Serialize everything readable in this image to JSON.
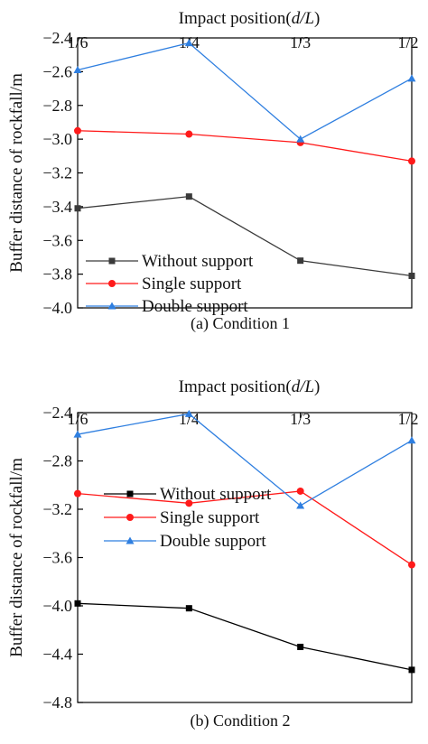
{
  "chart_data": [
    {
      "type": "line",
      "caption": "(a) Condition 1",
      "xlabel_prefix": "Impact position",
      "xlabel_var": "(d/L)",
      "ylabel": "Buffer distance of rockfall/m",
      "categories": [
        "1/6",
        "1/4",
        "1/3",
        "1/2"
      ],
      "yticks": [
        "-2.4",
        "-2.6",
        "-2.8",
        "-3.0",
        "-3.2",
        "-3.4",
        "-3.6",
        "-3.8",
        "-4.0"
      ],
      "ylim": [
        -4.0,
        -2.4
      ],
      "series": [
        {
          "name": "Without support",
          "color": "#3a3a3a",
          "marker": "square",
          "values": [
            -3.41,
            -3.34,
            -3.72,
            -3.81
          ]
        },
        {
          "name": "Single support",
          "color": "#ff1a1a",
          "marker": "circle",
          "values": [
            -2.95,
            -2.97,
            -3.02,
            -3.13
          ]
        },
        {
          "name": "Double support",
          "color": "#2f7fe0",
          "marker": "triangle",
          "values": [
            -2.59,
            -2.43,
            -3.0,
            -2.64
          ]
        }
      ]
    },
    {
      "type": "line",
      "caption": "(b) Condition 2",
      "xlabel_prefix": "Impact position",
      "xlabel_var": "(d/L)",
      "ylabel": "Buffer distance of rockfall/m",
      "categories": [
        "1/6",
        "1/4",
        "1/3",
        "1/2"
      ],
      "yticks": [
        "-2.4",
        "-2.8",
        "-3.2",
        "-3.6",
        "-4.0",
        "-4.4",
        "-4.8"
      ],
      "ylim": [
        -4.8,
        -2.4
      ],
      "series": [
        {
          "name": "Without support",
          "color": "#000000",
          "marker": "square",
          "values": [
            -3.98,
            -4.02,
            -4.34,
            -4.53
          ]
        },
        {
          "name": "Single support",
          "color": "#ff1a1a",
          "marker": "circle",
          "values": [
            -3.07,
            -3.15,
            -3.05,
            -3.66
          ]
        },
        {
          "name": "Double support",
          "color": "#2f7fe0",
          "marker": "triangle",
          "values": [
            -2.58,
            -2.41,
            -3.17,
            -2.63
          ]
        }
      ]
    }
  ]
}
